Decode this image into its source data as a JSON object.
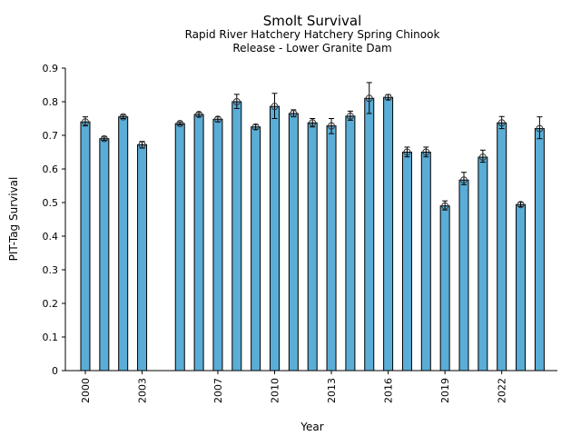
{
  "chart_data": {
    "type": "bar",
    "title": "Smolt Survival",
    "subtitle_lines": [
      "Rapid River Hatchery Hatchery Spring Chinook",
      "Release - Lower Granite Dam"
    ],
    "xlabel": "Year",
    "ylabel": "PIT-Tag Survival",
    "ylim": [
      0,
      0.9
    ],
    "xlim": [
      1999.5,
      2025.0
    ],
    "yticks": [
      0,
      0.1,
      0.2,
      0.3,
      0.4,
      0.5,
      0.6,
      0.7,
      0.8,
      0.9
    ],
    "ytick_labels": [
      "0",
      "0.1",
      "0.2",
      "0.3",
      "0.4",
      "0.5",
      "0.6",
      "0.7",
      "0.8",
      "0.9"
    ],
    "xticks": [
      2000,
      2003,
      2007,
      2010,
      2013,
      2016,
      2019,
      2022
    ],
    "xtick_labels": [
      "2000",
      "2003",
      "2007",
      "2010",
      "2013",
      "2016",
      "2019",
      "2022"
    ],
    "grid": false,
    "bar_color": "#5aadd6",
    "edge_color": "#000000",
    "series": [
      {
        "name": "PIT-Tag Survival",
        "x": [
          2000,
          2001,
          2002,
          2003,
          2005,
          2006,
          2007,
          2008,
          2009,
          2010,
          2011,
          2012,
          2013,
          2014,
          2015,
          2016,
          2017,
          2018,
          2019,
          2020,
          2021,
          2022,
          2023,
          2024
        ],
        "values": [
          0.74,
          0.69,
          0.755,
          0.672,
          0.735,
          0.762,
          0.748,
          0.8,
          0.725,
          0.786,
          0.765,
          0.737,
          0.728,
          0.757,
          0.81,
          0.813,
          0.65,
          0.65,
          0.49,
          0.567,
          0.635,
          0.737,
          0.494,
          0.72
        ],
        "err_low": [
          0.728,
          0.685,
          0.75,
          0.662,
          0.731,
          0.756,
          0.74,
          0.78,
          0.718,
          0.75,
          0.755,
          0.725,
          0.705,
          0.745,
          0.765,
          0.806,
          0.636,
          0.636,
          0.478,
          0.553,
          0.62,
          0.72,
          0.488,
          0.69
        ],
        "err_high": [
          0.755,
          0.695,
          0.76,
          0.682,
          0.74,
          0.768,
          0.755,
          0.822,
          0.732,
          0.825,
          0.776,
          0.75,
          0.75,
          0.772,
          0.857,
          0.821,
          0.665,
          0.665,
          0.505,
          0.59,
          0.656,
          0.756,
          0.501,
          0.755
        ]
      }
    ]
  }
}
